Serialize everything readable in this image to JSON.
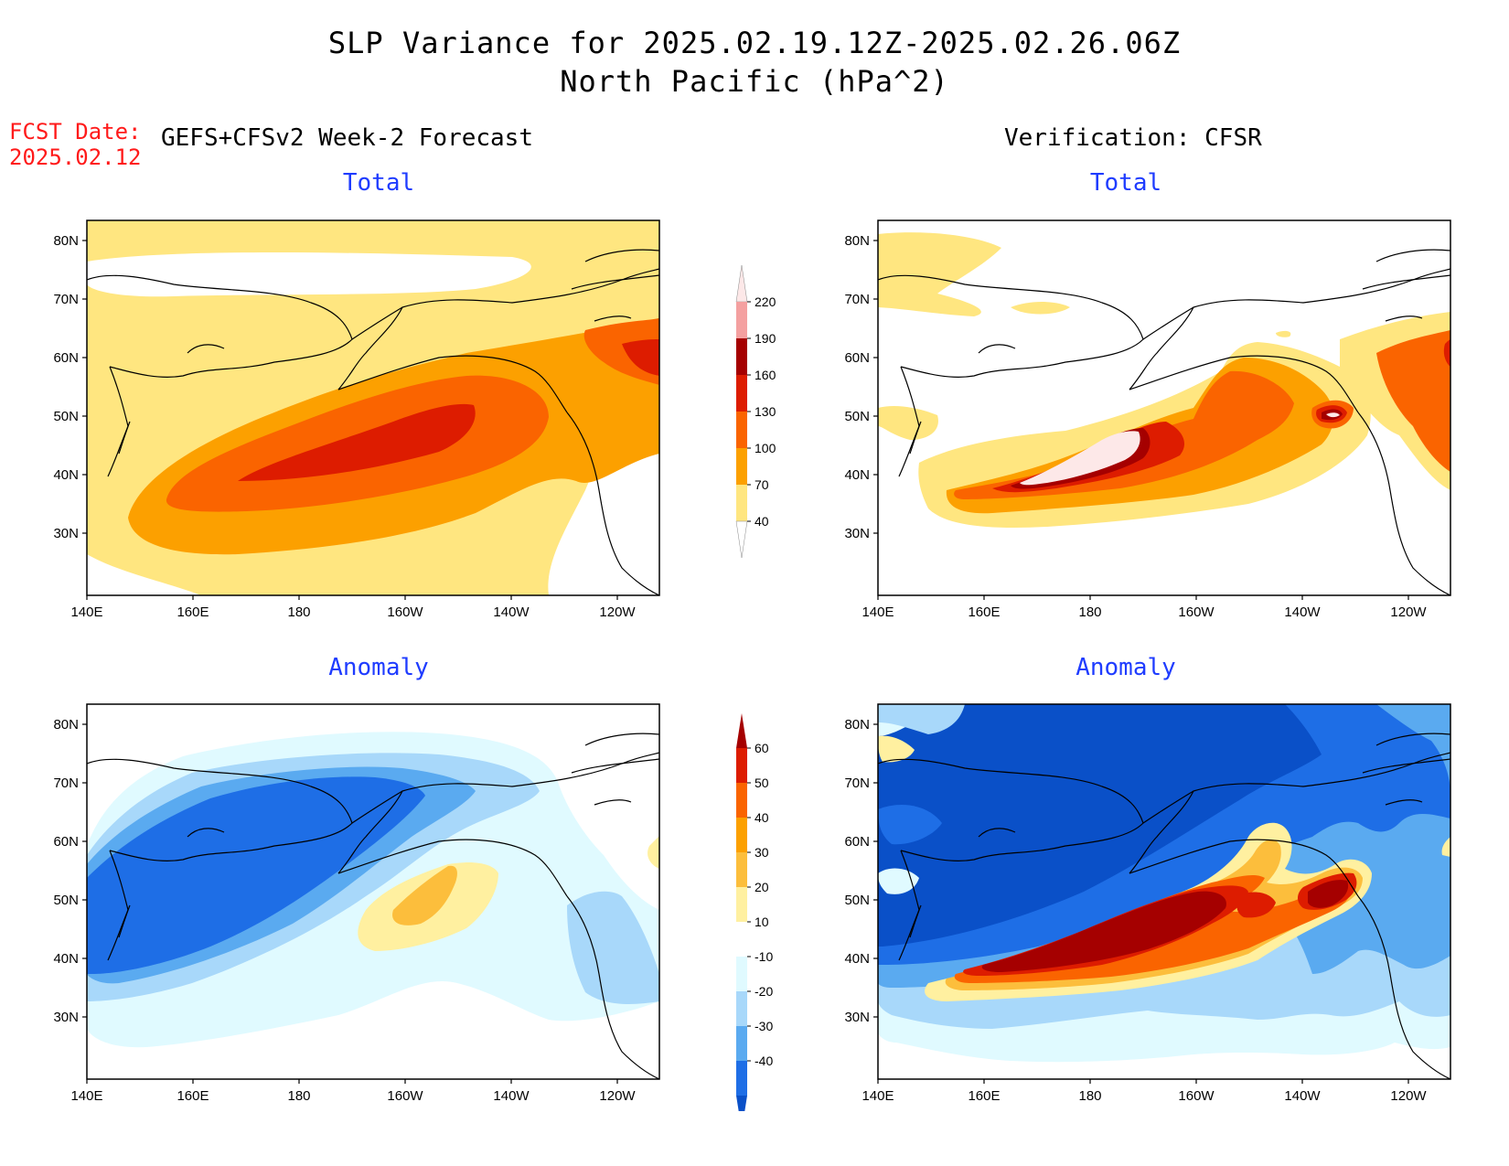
{
  "header": {
    "title_line1": "SLP Variance for 2025.02.19.12Z-2025.02.26.06Z",
    "title_line2": "North Pacific (hPa^2)",
    "fcst_label": "FCST Date:",
    "fcst_date": "2025.02.12"
  },
  "columns": {
    "left": "GEFS+CFSv2 Week-2 Forecast",
    "right": "Verification: CFSR"
  },
  "panels": {
    "total_title": "Total",
    "anomaly_title": "Anomaly"
  },
  "axes": {
    "lat_labels": [
      "80N",
      "70N",
      "60N",
      "50N",
      "40N",
      "30N"
    ],
    "lon_labels": [
      "140E",
      "160E",
      "180",
      "160W",
      "140W",
      "120W"
    ]
  },
  "colorbars": {
    "total": {
      "levels": [
        "220",
        "190",
        "160",
        "130",
        "100",
        "70",
        "40"
      ],
      "colors": [
        "#fde8e8",
        "#f4a0a0",
        "#a50000",
        "#dd1c00",
        "#fa6400",
        "#fca000",
        "#ffe680",
        "#ffffff"
      ]
    },
    "anomaly": {
      "levels": [
        "60",
        "50",
        "40",
        "30",
        "20",
        "10",
        "-10",
        "-20",
        "-30",
        "-40"
      ],
      "colors": [
        "#a50000",
        "#dd1c00",
        "#fa6400",
        "#fca000",
        "#fcbe3c",
        "#fff0a0",
        "#ffffff",
        "#e0faff",
        "#a8d8fa",
        "#5aaaf0",
        "#1e6ee6",
        "#0a50c8"
      ]
    }
  },
  "colors": {
    "panel_title": "#1f3cff",
    "fcst_date": "#ff1a1a"
  }
}
